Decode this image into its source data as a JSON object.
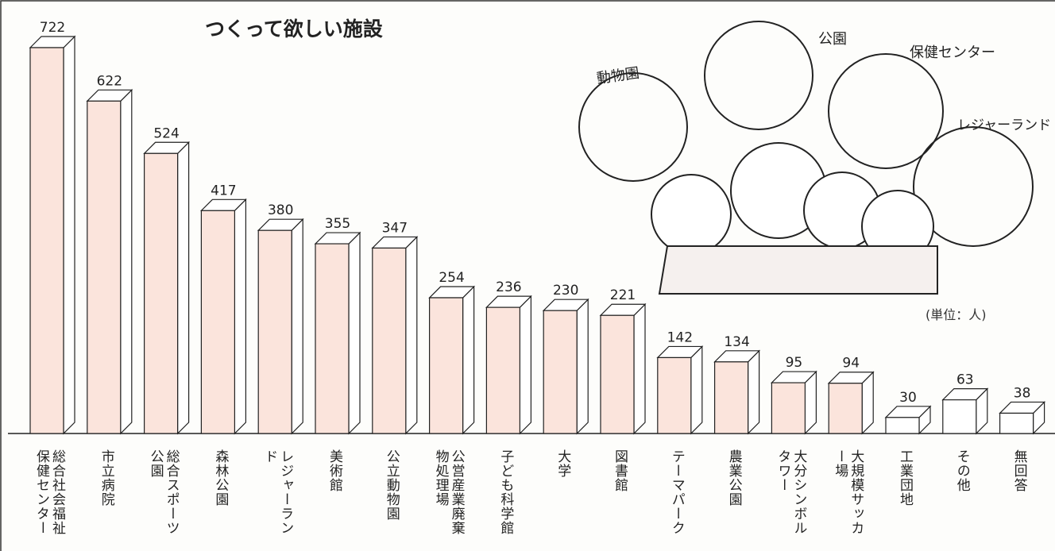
{
  "chart_data": {
    "type": "bar3d",
    "title": "つくって欲しい施設",
    "unit_note": "(単位：人)",
    "categories": [
      "総合社会福祉保健センター",
      "市立病院",
      "総合スポーツ公園",
      "森林公園",
      "レジャーランド",
      "美術館",
      "公立動物園",
      "公営産業廃棄物処理場",
      "子ども科学館",
      "大学",
      "図書館",
      "テーマパーク",
      "農業公園",
      "大分シンボルタワー",
      "大規模サッカー場",
      "工業団地",
      "その他",
      "無回答"
    ],
    "values": [
      722,
      622,
      524,
      417,
      380,
      355,
      347,
      254,
      236,
      230,
      221,
      142,
      134,
      95,
      94,
      30,
      63,
      38
    ],
    "colors": [
      "#fbe4dc",
      "#fbe4dc",
      "#fbe4dc",
      "#fbe4dc",
      "#fbe4dc",
      "#fbe4dc",
      "#fbe4dc",
      "#fbe4dc",
      "#fbe4dc",
      "#fbe4dc",
      "#fbe4dc",
      "#fbe4dc",
      "#fbe4dc",
      "#fbe4dc",
      "#fbe4dc",
      "#ffffff",
      "#ffffff",
      "#ffffff"
    ],
    "illustration_labels": [
      "動物園",
      "公園",
      "保健センター",
      "レジャーランド"
    ]
  }
}
